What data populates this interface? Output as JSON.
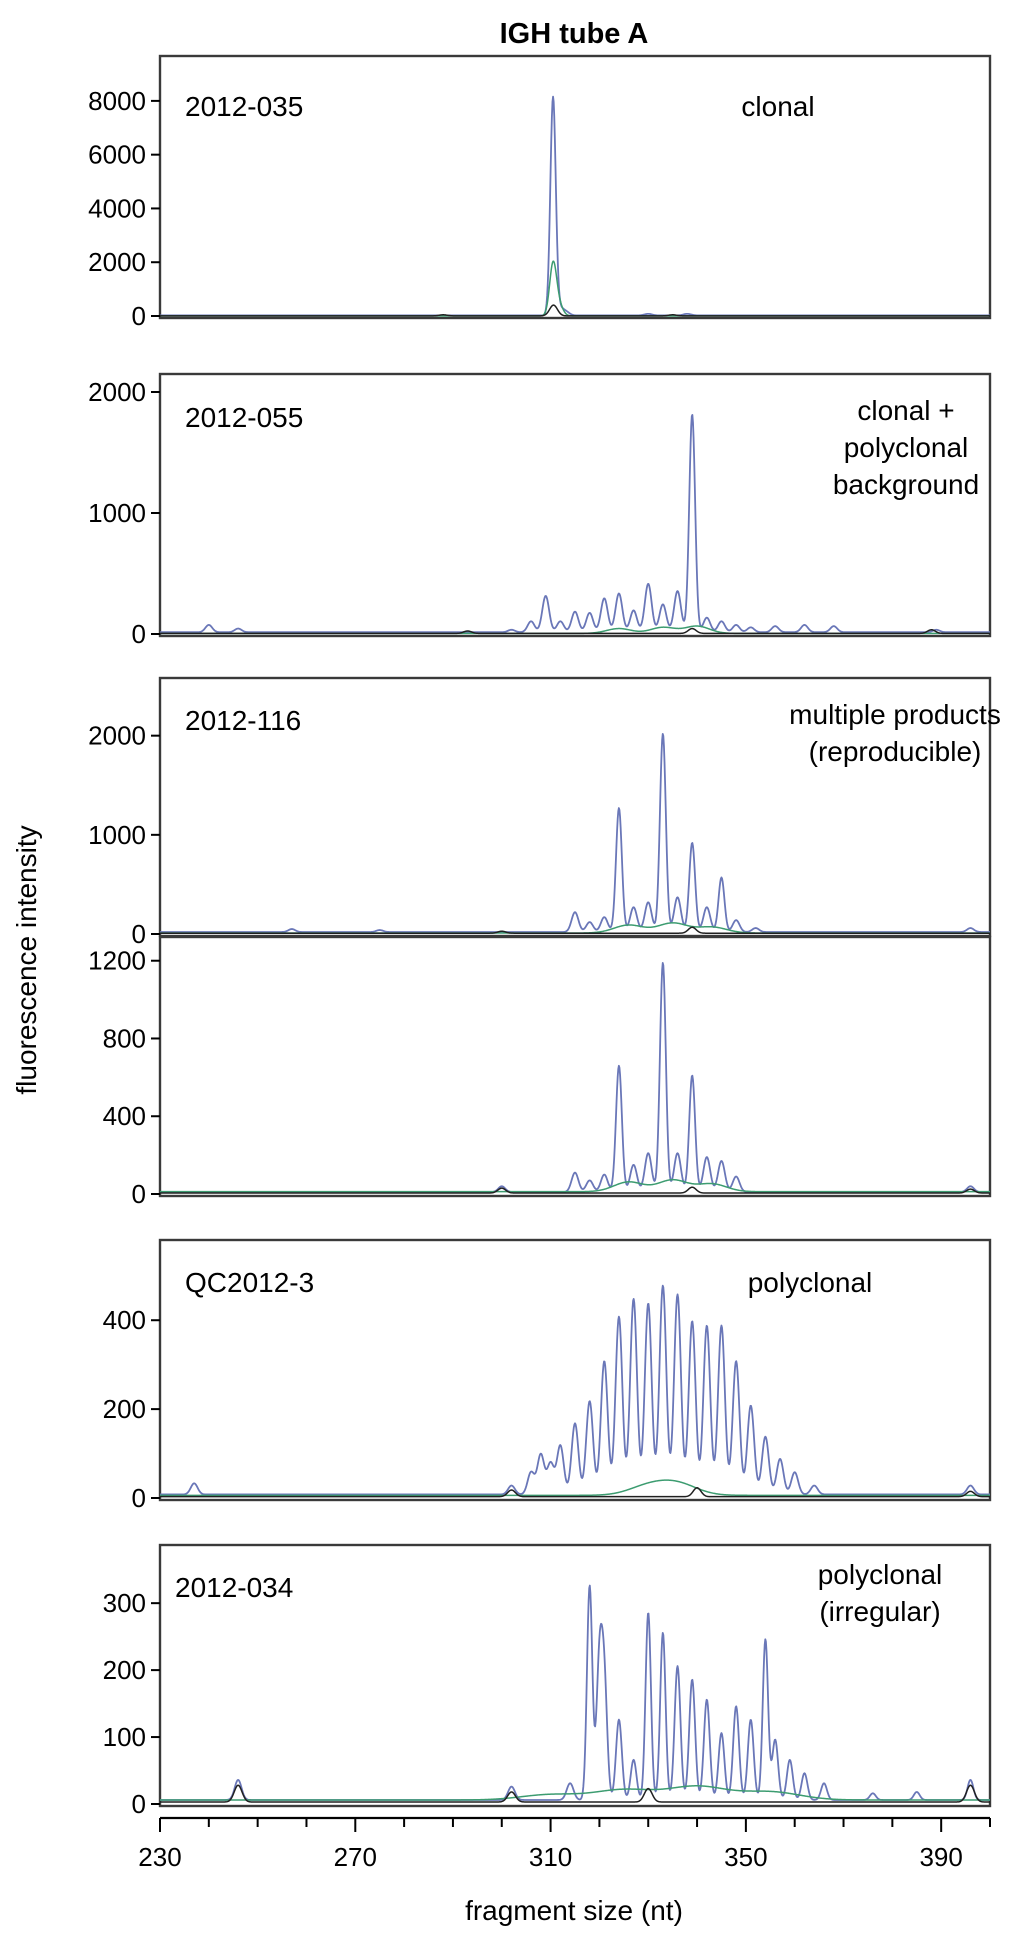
{
  "chart_data": [
    {
      "type": "line",
      "title": "IGH tube A",
      "sample": "2012-035",
      "annotation": [
        "clonal"
      ],
      "ylim": [
        0,
        9000
      ],
      "yticks": [
        0,
        2000,
        4000,
        6000,
        8000
      ],
      "xlim": [
        230,
        400
      ],
      "series": [
        {
          "color": "#6a77b8",
          "peaks": [
            [
              310.5,
              8000,
              0.55
            ],
            [
              311.5,
              300,
              0.8
            ],
            [
              313,
              150,
              0.8
            ],
            [
              330,
              60,
              0.8
            ],
            [
              338,
              60,
              0.8
            ]
          ],
          "baseline": 20
        },
        {
          "color": "#3c9c70",
          "peaks": [
            [
              310.5,
              1900,
              0.7
            ],
            [
              311.7,
              400,
              0.8
            ]
          ],
          "baseline": 5
        },
        {
          "color": "#202020",
          "peaks": [
            [
              310.6,
              400,
              0.8
            ],
            [
              288,
              40,
              0.8
            ],
            [
              335,
              40,
              0.8
            ]
          ],
          "baseline": 5
        }
      ]
    },
    {
      "type": "line",
      "sample": "2012-055",
      "annotation": [
        "clonal +",
        "polyclonal",
        "background"
      ],
      "ylim": [
        0,
        2000
      ],
      "yticks": [
        0,
        1000,
        2000
      ],
      "xlim": [
        230,
        400
      ],
      "series": [
        {
          "color": "#6a77b8",
          "peaks": [
            [
              240,
              60,
              0.7
            ],
            [
              246,
              30,
              0.7
            ],
            [
              302,
              20,
              0.7
            ],
            [
              306,
              90,
              0.7
            ],
            [
              309,
              300,
              0.7
            ],
            [
              312,
              90,
              0.7
            ],
            [
              315,
              170,
              0.7
            ],
            [
              318,
              160,
              0.7
            ],
            [
              321,
              280,
              0.7
            ],
            [
              324,
              320,
              0.7
            ],
            [
              327,
              180,
              0.7
            ],
            [
              330,
              400,
              0.7
            ],
            [
              333,
              230,
              0.7
            ],
            [
              336,
              340,
              0.7
            ],
            [
              339,
              1800,
              0.6
            ],
            [
              342,
              120,
              0.7
            ],
            [
              345,
              90,
              0.7
            ],
            [
              348,
              60,
              0.7
            ],
            [
              351,
              40,
              0.7
            ],
            [
              356,
              50,
              0.7
            ],
            [
              362,
              60,
              0.7
            ],
            [
              368,
              50,
              0.7
            ],
            [
              389,
              20,
              0.7
            ]
          ],
          "baseline": 15
        },
        {
          "color": "#3c9c70",
          "peaks": [
            [
              324,
              40,
              2.5
            ],
            [
              333,
              50,
              2.5
            ],
            [
              340,
              60,
              2.5
            ]
          ],
          "baseline": 5
        },
        {
          "color": "#202020",
          "peaks": [
            [
              293,
              20,
              0.8
            ],
            [
              339,
              40,
              0.8
            ],
            [
              388,
              30,
              0.8
            ]
          ],
          "baseline": 5
        }
      ]
    },
    {
      "type": "line",
      "sample": "2012-116",
      "annotation": [
        "multiple products",
        "(reproducible)"
      ],
      "ylim": [
        0,
        2400
      ],
      "yticks": [
        0,
        1000,
        2000
      ],
      "xlim": [
        230,
        400
      ],
      "series": [
        {
          "color": "#6a77b8",
          "peaks": [
            [
              257,
              30,
              0.7
            ],
            [
              275,
              20,
              0.7
            ],
            [
              315,
              200,
              0.7
            ],
            [
              318,
              100,
              0.7
            ],
            [
              321,
              150,
              0.7
            ],
            [
              324,
              1250,
              0.6
            ],
            [
              327,
              250,
              0.7
            ],
            [
              330,
              300,
              0.7
            ],
            [
              333,
              2000,
              0.6
            ],
            [
              336,
              350,
              0.7
            ],
            [
              339,
              900,
              0.6
            ],
            [
              342,
              250,
              0.7
            ],
            [
              345,
              550,
              0.6
            ],
            [
              348,
              120,
              0.7
            ],
            [
              352,
              40,
              0.7
            ],
            [
              396,
              40,
              0.7
            ]
          ],
          "baseline": 20
        },
        {
          "color": "#3c9c70",
          "peaks": [
            [
              326,
              80,
              3
            ],
            [
              335,
              100,
              3
            ],
            [
              343,
              60,
              3
            ]
          ],
          "baseline": 10
        },
        {
          "color": "#202020",
          "peaks": [
            [
              300,
              20,
              0.8
            ],
            [
              339,
              60,
              0.8
            ]
          ],
          "baseline": 8
        }
      ]
    },
    {
      "type": "line",
      "ylim": [
        0,
        1250
      ],
      "yticks": [
        0,
        400,
        800,
        1200
      ],
      "xlim": [
        230,
        400
      ],
      "series": [
        {
          "color": "#6a77b8",
          "peaks": [
            [
              300,
              30,
              0.7
            ],
            [
              315,
              100,
              0.7
            ],
            [
              318,
              60,
              0.7
            ],
            [
              321,
              90,
              0.7
            ],
            [
              324,
              650,
              0.6
            ],
            [
              327,
              140,
              0.7
            ],
            [
              330,
              200,
              0.7
            ],
            [
              333,
              1180,
              0.6
            ],
            [
              336,
              200,
              0.7
            ],
            [
              339,
              600,
              0.6
            ],
            [
              342,
              180,
              0.7
            ],
            [
              345,
              160,
              0.7
            ],
            [
              348,
              80,
              0.7
            ],
            [
              396,
              30,
              0.7
            ]
          ],
          "baseline": 10
        },
        {
          "color": "#3c9c70",
          "peaks": [
            [
              326,
              50,
              3
            ],
            [
              335,
              60,
              3
            ],
            [
              343,
              40,
              3
            ]
          ],
          "baseline": 12
        },
        {
          "color": "#202020",
          "peaks": [
            [
              300,
              25,
              0.8
            ],
            [
              339,
              30,
              0.8
            ],
            [
              396,
              20,
              0.8
            ]
          ],
          "baseline": 5
        }
      ]
    },
    {
      "type": "line",
      "sample": "QC2012-3",
      "annotation": [
        "polyclonal"
      ],
      "ylim": [
        0,
        540
      ],
      "yticks": [
        0,
        200,
        400
      ],
      "xlim": [
        230,
        400
      ],
      "series": [
        {
          "color": "#6a77b8",
          "peaks": [
            [
              237,
              25,
              0.7
            ],
            [
              302,
              20,
              0.7
            ],
            [
              306,
              50,
              0.7
            ],
            [
              308,
              90,
              0.7
            ],
            [
              310,
              70,
              0.7
            ],
            [
              312,
              110,
              0.7
            ],
            [
              315,
              160,
              0.7
            ],
            [
              318,
              210,
              0.7
            ],
            [
              321,
              300,
              0.7
            ],
            [
              324,
              400,
              0.7
            ],
            [
              327,
              440,
              0.7
            ],
            [
              330,
              430,
              0.7
            ],
            [
              333,
              470,
              0.7
            ],
            [
              336,
              450,
              0.7
            ],
            [
              339,
              390,
              0.7
            ],
            [
              342,
              380,
              0.7
            ],
            [
              345,
              380,
              0.7
            ],
            [
              348,
              300,
              0.7
            ],
            [
              351,
              200,
              0.7
            ],
            [
              354,
              130,
              0.7
            ],
            [
              357,
              80,
              0.7
            ],
            [
              360,
              50,
              0.7
            ],
            [
              364,
              20,
              0.7
            ],
            [
              396,
              20,
              0.7
            ]
          ],
          "baseline": 8
        },
        {
          "color": "#3c9c70",
          "peaks": [
            [
              330,
              20,
              4
            ],
            [
              336,
              25,
              4
            ]
          ],
          "baseline": 6
        },
        {
          "color": "#202020",
          "peaks": [
            [
              302,
              15,
              0.8
            ],
            [
              340,
              20,
              0.8
            ],
            [
              396,
              12,
              0.8
            ]
          ],
          "baseline": 3
        }
      ]
    },
    {
      "type": "line",
      "sample": "2012-034",
      "annotation": [
        "polyclonal",
        "(irregular)"
      ],
      "ylim": [
        0,
        360
      ],
      "yticks": [
        0,
        100,
        200,
        300
      ],
      "xlim": [
        230,
        400
      ],
      "series": [
        {
          "color": "#6a77b8",
          "peaks": [
            [
              246,
              30,
              0.7
            ],
            [
              302,
              20,
              0.7
            ],
            [
              314,
              25,
              0.7
            ],
            [
              318,
              320,
              0.55
            ],
            [
              320,
              200,
              0.6
            ],
            [
              321,
              170,
              0.6
            ],
            [
              324,
              120,
              0.6
            ],
            [
              327,
              60,
              0.6
            ],
            [
              330,
              280,
              0.55
            ],
            [
              333,
              250,
              0.55
            ],
            [
              336,
              200,
              0.6
            ],
            [
              339,
              180,
              0.6
            ],
            [
              342,
              150,
              0.6
            ],
            [
              345,
              100,
              0.6
            ],
            [
              348,
              140,
              0.6
            ],
            [
              351,
              120,
              0.6
            ],
            [
              354,
              240,
              0.55
            ],
            [
              356,
              90,
              0.6
            ],
            [
              359,
              60,
              0.6
            ],
            [
              362,
              40,
              0.6
            ],
            [
              366,
              25,
              0.6
            ],
            [
              376,
              10,
              0.6
            ],
            [
              385,
              12,
              0.6
            ],
            [
              396,
              30,
              0.6
            ]
          ],
          "baseline": 6
        },
        {
          "color": "#3c9c70",
          "peaks": [
            [
              310,
              8,
              6
            ],
            [
              325,
              15,
              6
            ],
            [
              340,
              20,
              6
            ],
            [
              355,
              12,
              6
            ]
          ],
          "baseline": 6
        },
        {
          "color": "#202020",
          "peaks": [
            [
              246,
              25,
              0.8
            ],
            [
              302,
              15,
              0.8
            ],
            [
              330,
              20,
              0.8
            ],
            [
              396,
              25,
              0.8
            ]
          ],
          "baseline": 3
        }
      ]
    }
  ],
  "x_axis": {
    "label": "fragment size (nt)",
    "range": [
      230,
      400
    ],
    "labeled_ticks": [
      230,
      270,
      310,
      350,
      390
    ],
    "minor_step": 10
  },
  "y_axis": {
    "label": "fluorescence intensity"
  },
  "colors": {
    "series_blue": "#6a77b8",
    "series_green": "#3c9c70",
    "series_black": "#202020",
    "frame": "#3a3a3a"
  }
}
